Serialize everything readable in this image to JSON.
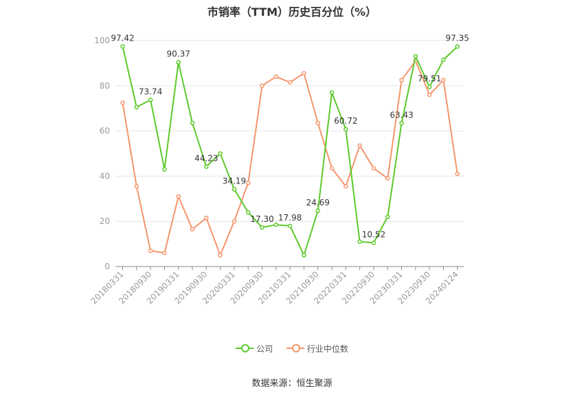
{
  "title": "市销率（TTM）历史百分位（%）",
  "source": "数据来源：恒生聚源",
  "colors": {
    "company": "#5cc92a",
    "industry": "#f5956a"
  },
  "chart_data": {
    "type": "line",
    "title": "市销率（TTM）历史百分位（%）",
    "ylim": [
      0,
      100
    ],
    "yticks": [
      0,
      20,
      40,
      60,
      80,
      100
    ],
    "grid": true,
    "legend": "bottom",
    "xticklabels": [
      "20180331",
      "20180930",
      "20190331",
      "20190930",
      "20200331",
      "20200930",
      "20210331",
      "20210930",
      "20220331",
      "20220930",
      "20230331",
      "20230930",
      "20240124"
    ],
    "x": [
      "20180331",
      "20180630",
      "20180930",
      "20181231",
      "20190331",
      "20190630",
      "20190930",
      "20191231",
      "20200331",
      "20200630",
      "20200930",
      "20201231",
      "20210331",
      "20210630",
      "20210930",
      "20211231",
      "20220331",
      "20220630",
      "20220930",
      "20221231",
      "20230331",
      "20230630",
      "20230930",
      "20231231",
      "20240124"
    ],
    "series": [
      {
        "name": "公司",
        "values": [
          97.42,
          70.5,
          73.74,
          43.0,
          90.37,
          63.5,
          44.23,
          50.0,
          34.19,
          24.0,
          17.3,
          18.5,
          17.98,
          5.0,
          24.69,
          77.0,
          60.72,
          11.0,
          10.52,
          22.0,
          63.43,
          93.0,
          79.51,
          91.5,
          97.35
        ],
        "labels": {
          "0": "97.42",
          "2": "73.74",
          "4": "90.37",
          "6": "44.23",
          "8": "34.19",
          "10": "17.30",
          "12": "17.98",
          "14": "24.69",
          "16": "60.72",
          "18": "10.52",
          "20": "63.43",
          "22": "79.51",
          "24": "97.35"
        }
      },
      {
        "name": "行业中位数",
        "values": [
          72.5,
          35.5,
          7.0,
          6.0,
          31.0,
          16.5,
          21.5,
          5.0,
          20.0,
          37.0,
          80.0,
          84.0,
          81.5,
          85.5,
          63.5,
          43.5,
          35.5,
          53.5,
          43.5,
          39.0,
          82.5,
          91.0,
          76.0,
          82.5,
          41.0
        ]
      }
    ]
  }
}
